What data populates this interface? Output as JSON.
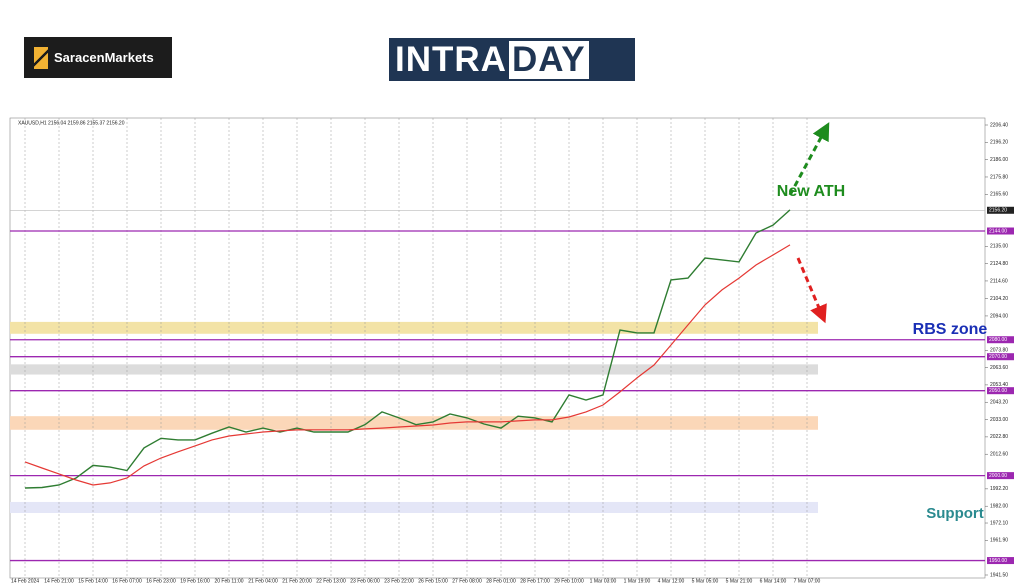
{
  "header": {
    "brand": "SaracenMarkets",
    "logo_left": "INTRA",
    "logo_right": "DAY"
  },
  "chart_data": {
    "type": "line",
    "symbol_info": "XAUUSD,H1  2156.04 2159.86 2155.37 2156.20",
    "categories": [
      "14 Feb 2024",
      null,
      "14 Feb 21:00",
      null,
      "15 Feb 14:00",
      null,
      "16 Feb 07:00",
      null,
      "16 Feb 23:00",
      null,
      "19 Feb 16:00",
      null,
      "20 Feb 11:00",
      null,
      "21 Feb 04:00",
      null,
      "21 Feb 20:00",
      null,
      "22 Feb 13:00",
      null,
      "23 Feb 06:00",
      null,
      "23 Feb 22:00",
      null,
      "26 Feb 15:00",
      null,
      "27 Feb 08:00",
      null,
      "28 Feb 01:00",
      null,
      "28 Feb 17:00",
      null,
      "29 Feb 10:00",
      null,
      "1 Mar 03:00",
      null,
      "1 Mar 19:00",
      null,
      "4 Mar 12:00",
      null,
      "5 Mar 05:00",
      null,
      "5 Mar 21:00",
      null,
      "6 Mar 14:00",
      null,
      "7 Mar 07:00"
    ],
    "series": [
      {
        "name": "XAUUSD,H1",
        "color": "#2f7d32",
        "values": [
          1992.7,
          1993,
          1994.5,
          1998.6,
          2006,
          2005,
          2003,
          2016.3,
          2022,
          2021,
          2021,
          2025,
          2028.6,
          2025.7,
          2028,
          2025.7,
          2028,
          2025.7,
          2025.7,
          2025.7,
          2030,
          2037.5,
          2034,
          2030,
          2031.6,
          2036.3,
          2034,
          2030.4,
          2028,
          2035,
          2034,
          2031.6,
          2047.5,
          2044.5,
          2047.5,
          2085.7,
          2084,
          2084,
          2115.2,
          2116.3,
          2128.1,
          2127,
          2125.8,
          2142.8,
          2147.5,
          2156.4,
          null
        ]
      },
      {
        "name": "MA",
        "color": "#e53935",
        "values": [
          2008.1,
          2004.5,
          2001,
          1997.4,
          1994.5,
          1995.7,
          1998.6,
          2005.7,
          2010.4,
          2014,
          2017.5,
          2021,
          2023.3,
          2024.5,
          2025.7,
          2026.3,
          2026.9,
          2026.9,
          2026.9,
          2026.9,
          2027.5,
          2028,
          2028.6,
          2029.2,
          2029.8,
          2031,
          2031.6,
          2031.6,
          2031.6,
          2032.2,
          2032.8,
          2032.8,
          2034.5,
          2037.5,
          2041.6,
          2049.3,
          2057.5,
          2065.1,
          2076.9,
          2088.7,
          2100.5,
          2109.3,
          2116.3,
          2124,
          2129.9,
          2135.8,
          null
        ]
      }
    ],
    "ylim": [
      1941.5,
      2206.4
    ],
    "yticks": [
      {
        "value": 2206.4,
        "label": "2206.40"
      },
      {
        "value": 2196.2,
        "label": "2196.20"
      },
      {
        "value": 2186,
        "label": "2186.00"
      },
      {
        "value": 2175.8,
        "label": "2175.80"
      },
      {
        "value": 2165.6,
        "label": "2165.60"
      },
      {
        "value": 2135,
        "label": "2135.00"
      },
      {
        "value": 2124.8,
        "label": "2124.80"
      },
      {
        "value": 2114.6,
        "label": "2114.60"
      },
      {
        "value": 2104.2,
        "label": "2104.20"
      },
      {
        "value": 2094,
        "label": "2094.00"
      },
      {
        "value": 2073.8,
        "label": "2073.80"
      },
      {
        "value": 2063.6,
        "label": "2063.60"
      },
      {
        "value": 2053.4,
        "label": "2053.40"
      },
      {
        "value": 2043.2,
        "label": "2043.20"
      },
      {
        "value": 2033,
        "label": "2033.00"
      },
      {
        "value": 2022.8,
        "label": "2022.80"
      },
      {
        "value": 2012.6,
        "label": "2012.60"
      },
      {
        "value": 1992.2,
        "label": "1992.20"
      },
      {
        "value": 1982,
        "label": "1982.00"
      },
      {
        "value": 1972.1,
        "label": "1972.10"
      },
      {
        "value": 1961.9,
        "label": "1961.90"
      },
      {
        "value": 1941.5,
        "label": "1941.50"
      }
    ],
    "grid": "x",
    "current_price": {
      "value": 2156.2,
      "label": "2156.20"
    },
    "level_color": "#9c27b0",
    "levels": [
      {
        "value": 2144,
        "label": "2144.00"
      },
      {
        "value": 2080,
        "label": "2080.00"
      },
      {
        "value": 2070,
        "label": "2070.00"
      },
      {
        "value": 2050,
        "label": "2050.00"
      },
      {
        "value": 2000,
        "label": "2000.00"
      },
      {
        "value": 1950,
        "label": "1950.00"
      }
    ],
    "zones": [
      {
        "from": 2083.5,
        "to": 2090.5,
        "color": "#f3e3a6"
      },
      {
        "from": 2059.5,
        "to": 2065.5,
        "color": "#dcdcdc"
      },
      {
        "from": 2027,
        "to": 2035,
        "color": "#fbd7b8"
      },
      {
        "from": 1978,
        "to": 1984.5,
        "color": "#e4e6f7"
      }
    ],
    "annotations": [
      {
        "text": "New ATH",
        "color": "#1e8c1e"
      },
      {
        "text": "RBS zone",
        "color": "#1a2fb5"
      },
      {
        "text": "Support",
        "color": "#2a8a8f"
      }
    ]
  }
}
